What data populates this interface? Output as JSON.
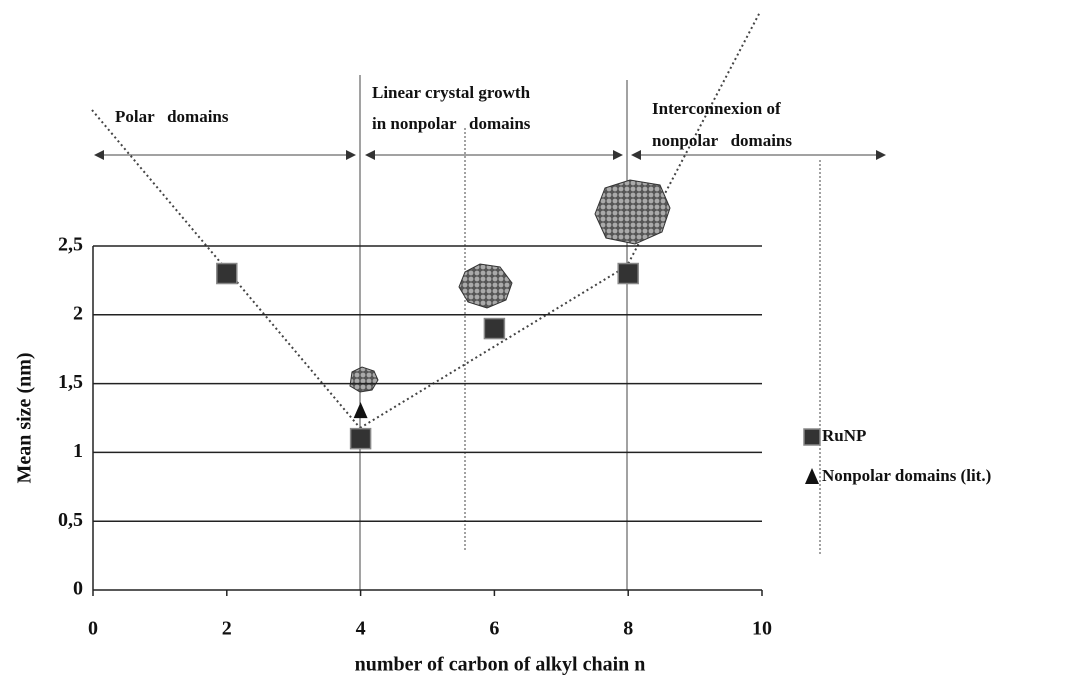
{
  "chart_data": {
    "type": "scatter",
    "x_label": "number of carbon of alkyl chain n",
    "y_label": "Mean size (nm)",
    "xlim": [
      0,
      10
    ],
    "xticks": [
      0,
      2,
      4,
      6,
      8,
      10
    ],
    "ylim": [
      0,
      2.5
    ],
    "yticks": [
      0,
      {
        "value": 0.5,
        "label": "0,5"
      },
      1,
      {
        "value": 1.5,
        "label": "1,5"
      },
      2,
      {
        "value": 2.5,
        "label": "2,5"
      }
    ],
    "grid": true,
    "series": [
      {
        "name": "RuNP",
        "marker": "square",
        "color": "#333333",
        "x": [
          2,
          4,
          6,
          8
        ],
        "values": [
          2.3,
          1.1,
          1.9,
          2.3
        ]
      },
      {
        "name": "Nonpolar domains (lit.)",
        "marker": "triangle",
        "color": "#111111",
        "x": [
          4
        ],
        "values": [
          1.3
        ]
      }
    ],
    "annotations": [
      "Polar   domains",
      "Linear crystal growth",
      "in nonpolar   domains",
      "Interconnexion of",
      "nonpolar   domains"
    ]
  }
}
